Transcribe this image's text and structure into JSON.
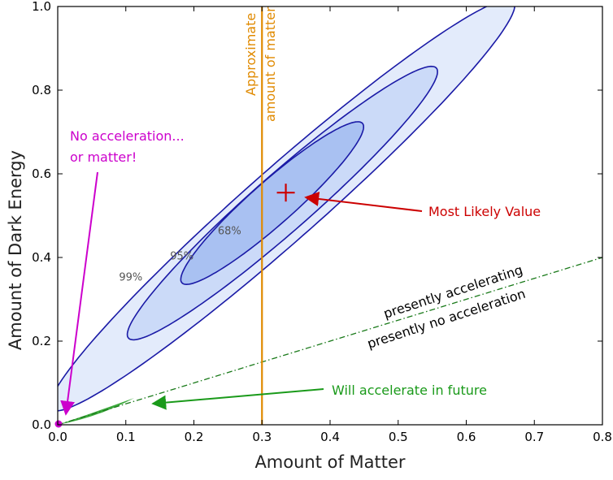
{
  "chart_data": {
    "type": "contour",
    "xlabel": "Amount of Matter",
    "ylabel": "Amount of Dark Energy",
    "xlim": [
      0.0,
      0.8
    ],
    "ylim": [
      0.0,
      1.0
    ],
    "x_ticks": [
      "0.0",
      "0.1",
      "0.2",
      "0.3",
      "0.4",
      "0.5",
      "0.6",
      "0.7",
      "0.8"
    ],
    "y_ticks": [
      "0.0",
      "0.2",
      "0.4",
      "0.6",
      "0.8",
      "1.0"
    ],
    "best_fit": {
      "x": 0.335,
      "y": 0.555
    },
    "contours": [
      {
        "label": "99%",
        "label_x": 0.09,
        "label_y": 0.345,
        "center": [
          0.33,
          0.525
        ],
        "semi_major": 0.595,
        "semi_minor": 0.066,
        "angle_deg": 55.5,
        "fill": "#e3ebfb"
      },
      {
        "label": "95%",
        "label_x": 0.165,
        "label_y": 0.395,
        "center": [
          0.33,
          0.53
        ],
        "semi_major": 0.395,
        "semi_minor": 0.052,
        "angle_deg": 55.5,
        "fill": "#cbdaf8"
      },
      {
        "label": "68%",
        "label_x": 0.235,
        "label_y": 0.455,
        "center": [
          0.315,
          0.53
        ],
        "semi_major": 0.233,
        "semi_minor": 0.039,
        "angle_deg": 56,
        "fill": "#a9c1f2"
      }
    ],
    "acceleration_line": {
      "x": [
        0.0,
        0.8
      ],
      "y": [
        0.0,
        0.4
      ],
      "labels": [
        "presently accelerating",
        "presently no acceleration"
      ]
    },
    "matter_line": {
      "x": 0.3,
      "label": [
        "Approximate",
        "amount of matter"
      ]
    },
    "annotations": [
      {
        "text": "Most Likely Value",
        "color": "#cc0000"
      },
      {
        "text": [
          "No acceleration...",
          "or matter!"
        ],
        "color": "#cc00cc"
      },
      {
        "text": "Will accelerate in future",
        "color": "#1a9a1a"
      }
    ],
    "colors": {
      "contour_line": "#1a1aa6",
      "matter_line": "#e08a00",
      "best_fit": "#cc0000",
      "no_acceleration": "#cc00cc",
      "future_acceleration": "#1a9a1a",
      "acceleration_line": "#1a7a1a"
    }
  }
}
